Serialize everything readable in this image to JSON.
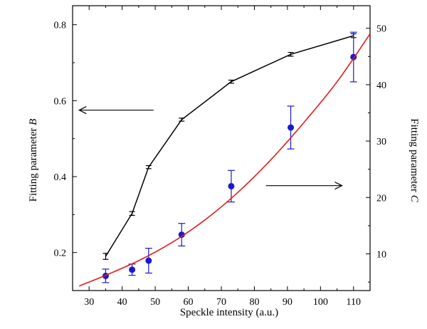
{
  "chart_data": {
    "type": "line",
    "xlabel": "Speckle intensity (a.u.)",
    "ylabel_left": {
      "text": "Fitting parameter ",
      "var": "B"
    },
    "ylabel_right": {
      "text": "Fitting parameter ",
      "var": "C"
    },
    "xlim": [
      25,
      115
    ],
    "ylim_left": [
      0.1,
      0.85
    ],
    "ylim_right": [
      3.5,
      54
    ],
    "x_ticks": [
      30,
      40,
      50,
      60,
      70,
      80,
      90,
      100,
      110
    ],
    "y_left_ticks": [
      0.2,
      0.4,
      0.6,
      0.8
    ],
    "y_right_ticks": [
      10,
      20,
      30,
      40,
      50
    ],
    "grid": false,
    "series": [
      {
        "axis": "left",
        "color": "#000000",
        "style": "line-with-errorbars",
        "x": [
          35,
          43,
          48,
          58,
          73,
          91,
          110
        ],
        "y": [
          0.19,
          0.303,
          0.425,
          0.55,
          0.65,
          0.722,
          0.771
        ],
        "err": [
          0.008,
          0.005,
          0.004,
          0.004,
          0.004,
          0.005,
          0.005
        ]
      },
      {
        "axis": "right",
        "color": "#1a1acc",
        "style": "points-with-errorbars",
        "x": [
          35,
          43,
          48,
          58,
          73,
          91,
          110
        ],
        "y": [
          6.1,
          7.2,
          8.8,
          13.4,
          22.0,
          32.4,
          44.9
        ],
        "err": [
          1.2,
          1.0,
          2.2,
          2.0,
          2.8,
          3.8,
          4.4
        ]
      },
      {
        "axis": "right",
        "color": "#e31a1a",
        "style": "fit-curve",
        "x": [
          27,
          35,
          45,
          55,
          65,
          75,
          85,
          95,
          105,
          115
        ],
        "y": [
          4.3,
          6.2,
          8.8,
          12.0,
          16.0,
          20.9,
          26.7,
          33.3,
          40.5,
          49.0
        ]
      }
    ],
    "annotations": [
      {
        "type": "arrow",
        "direction": "left",
        "points_to": "left-axis",
        "from": [
          49.5,
          0.575
        ],
        "to": [
          27,
          0.575
        ]
      },
      {
        "type": "arrow",
        "direction": "right",
        "points_to": "right-axis",
        "from": [
          83.5,
          22.1
        ],
        "to": [
          106.5,
          22.1
        ]
      }
    ]
  }
}
